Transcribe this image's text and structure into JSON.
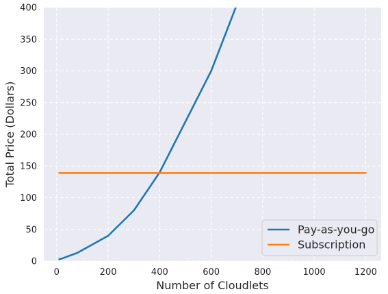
{
  "chart_data": {
    "type": "line",
    "xlabel": "Number of Cloudlets",
    "ylabel": "Total Price (Dollars)",
    "xlim": [
      -50,
      1260
    ],
    "ylim": [
      0,
      400
    ],
    "xticks": [
      0,
      200,
      400,
      600,
      800,
      1000,
      1200
    ],
    "yticks": [
      0,
      50,
      100,
      150,
      200,
      250,
      300,
      350,
      400
    ],
    "grid": true,
    "background": "#eaeaf2",
    "legend_position": "lower right",
    "series": [
      {
        "name": "Pay-as-you-go",
        "color": "#1f77b4",
        "x": [
          10,
          20,
          80,
          200,
          300,
          400,
          500,
          600,
          700
        ],
        "y": [
          3,
          4,
          13,
          40,
          80,
          140,
          220,
          300,
          405
        ]
      },
      {
        "name": "Subscription",
        "color": "#ff7f0e",
        "x": [
          10,
          1200
        ],
        "y": [
          139,
          139
        ]
      }
    ]
  }
}
